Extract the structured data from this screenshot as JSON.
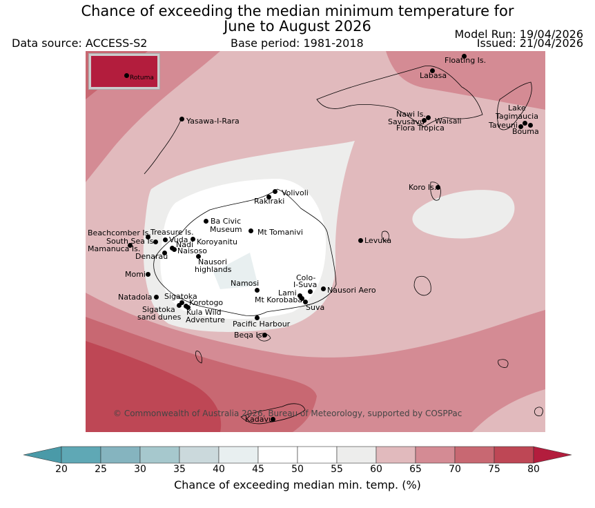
{
  "title": {
    "line1": "Chance of exceeding the median minimum temperature for",
    "line2": "June to August 2026"
  },
  "header": {
    "data_source": "Data source: ACCESS-S2",
    "base_period": "Base period: 1981-2018",
    "model_run": "Model Run: 19/04/2026",
    "issued": "Issued: 21/04/2026"
  },
  "inset_label": "Rotuma",
  "copyright": "© Commonwealth of Australia 2026, Bureau of Meteorology, supported by COSPPac",
  "places": [
    {
      "id": "floating",
      "label": "Floating Is."
    },
    {
      "id": "labasa",
      "label": "Labasa"
    },
    {
      "id": "nawi",
      "label": "Nawi Is."
    },
    {
      "id": "savusavu",
      "label": "Savusavu"
    },
    {
      "id": "waisali",
      "label": "Waisali"
    },
    {
      "id": "flora",
      "label": "Flora Tropica"
    },
    {
      "id": "lake",
      "label": "Lake"
    },
    {
      "id": "tagimaucia",
      "label": "Tagimaucia"
    },
    {
      "id": "taveuni",
      "label": "Taveuni"
    },
    {
      "id": "bouma",
      "label": "Bouma"
    },
    {
      "id": "yasawa",
      "label": "Yasawa-I-Rara"
    },
    {
      "id": "koro",
      "label": "Koro Is."
    },
    {
      "id": "volivoli",
      "label": "Volivoli"
    },
    {
      "id": "rakiraki",
      "label": "Rakiraki"
    },
    {
      "id": "bacivic1",
      "label": "Ba Civic"
    },
    {
      "id": "bacivic2",
      "label": "Museum"
    },
    {
      "id": "tomanivi",
      "label": "Mt Tomanivi"
    },
    {
      "id": "beachcomber",
      "label": "Beachcomber Is."
    },
    {
      "id": "treasure",
      "label": "Treasure Is."
    },
    {
      "id": "southsea",
      "label": "South Sea Is."
    },
    {
      "id": "vuda",
      "label": "Vuda"
    },
    {
      "id": "koroyanitu",
      "label": "Koroyanitu"
    },
    {
      "id": "nadi",
      "label": "Nadi"
    },
    {
      "id": "mamanuca",
      "label": "Mamanuca Is."
    },
    {
      "id": "naisoso",
      "label": "Naisoso"
    },
    {
      "id": "denarau",
      "label": "Denarau"
    },
    {
      "id": "nausori_h1",
      "label": "Nausori"
    },
    {
      "id": "nausori_h2",
      "label": "highlands"
    },
    {
      "id": "levuka",
      "label": "Levuka"
    },
    {
      "id": "momi",
      "label": "Momi"
    },
    {
      "id": "namosi",
      "label": "Namosi"
    },
    {
      "id": "colo1",
      "label": "Colo-"
    },
    {
      "id": "colo2",
      "label": "I-Suva"
    },
    {
      "id": "lami",
      "label": "Lami"
    },
    {
      "id": "nausori_aero",
      "label": "Nausori Aero"
    },
    {
      "id": "korobaba",
      "label": "Mt Korobaba"
    },
    {
      "id": "suva",
      "label": "Suva"
    },
    {
      "id": "natadola",
      "label": "Natadola"
    },
    {
      "id": "sigatoka",
      "label": "Sigatoka"
    },
    {
      "id": "korotogo",
      "label": "Korotogo"
    },
    {
      "id": "sig_dunes1",
      "label": "Sigatoka"
    },
    {
      "id": "sig_dunes2",
      "label": "sand dunes"
    },
    {
      "id": "kula1",
      "label": "Kula Wild"
    },
    {
      "id": "kula2",
      "label": "Adventure"
    },
    {
      "id": "pacific",
      "label": "Pacific Harbour"
    },
    {
      "id": "beqa",
      "label": "Beqa Is."
    },
    {
      "id": "kadavu",
      "label": "Kadavu"
    }
  ],
  "colorbar": {
    "label": "Chance of exceeding median min. temp. (%)",
    "ticks": [
      "20",
      "25",
      "30",
      "35",
      "40",
      "45",
      "50",
      "55",
      "60",
      "65",
      "70",
      "75",
      "80"
    ],
    "colors": [
      "#5fa8b5",
      "#85b4bf",
      "#a6c8cd",
      "#cbd9dc",
      "#e8eff0",
      "#ffffff",
      "#ffffff",
      "#ededec",
      "#e1babd",
      "#d48b94",
      "#c86872",
      "#be4755"
    ],
    "under_color": "#4a9aa8",
    "over_color": "#b31d3d"
  }
}
